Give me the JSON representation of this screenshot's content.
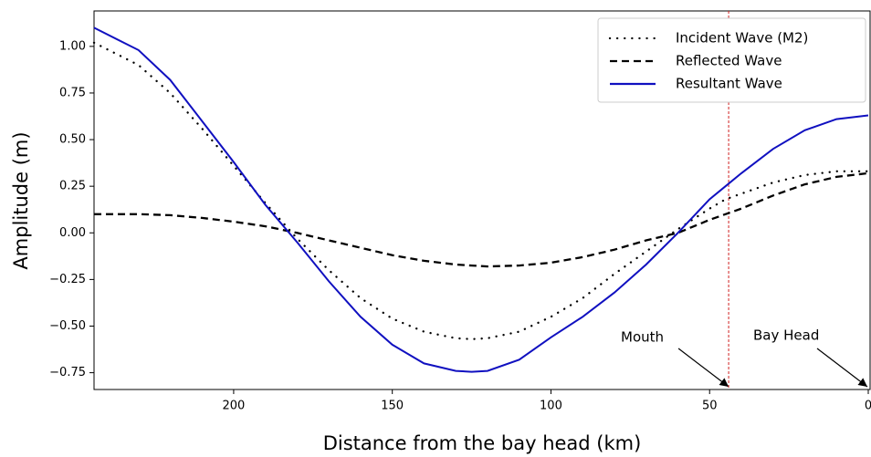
{
  "chart_data": {
    "type": "line",
    "xlabel": "Distance from the bay head (km)",
    "ylabel": "Amplitude (m)",
    "x": [
      244,
      230,
      220,
      210,
      200,
      190,
      180,
      170,
      160,
      150,
      140,
      130,
      125,
      120,
      110,
      100,
      90,
      80,
      70,
      60,
      50,
      45,
      40,
      30,
      20,
      10,
      0
    ],
    "series": [
      {
        "name": "Incident Wave (M2)",
        "color": "#000000",
        "style": "dotted",
        "values": [
          1.02,
          0.9,
          0.75,
          0.56,
          0.36,
          0.16,
          -0.03,
          -0.2,
          -0.35,
          -0.46,
          -0.53,
          -0.565,
          -0.57,
          -0.565,
          -0.53,
          -0.45,
          -0.35,
          -0.22,
          -0.1,
          0.02,
          0.13,
          0.18,
          0.21,
          0.27,
          0.31,
          0.33,
          0.33
        ]
      },
      {
        "name": "Reflected Wave",
        "color": "#000000",
        "style": "dashed",
        "values": [
          0.1,
          0.1,
          0.095,
          0.08,
          0.06,
          0.035,
          0.0,
          -0.04,
          -0.08,
          -0.12,
          -0.15,
          -0.17,
          -0.175,
          -0.18,
          -0.175,
          -0.16,
          -0.13,
          -0.09,
          -0.04,
          0.0,
          0.07,
          0.1,
          0.13,
          0.2,
          0.26,
          0.3,
          0.32
        ]
      },
      {
        "name": "Resultant Wave",
        "color": "#1010c0",
        "style": "solid",
        "values": [
          1.1,
          0.98,
          0.82,
          0.6,
          0.38,
          0.15,
          -0.05,
          -0.26,
          -0.45,
          -0.6,
          -0.7,
          -0.74,
          -0.745,
          -0.74,
          -0.68,
          -0.56,
          -0.45,
          -0.32,
          -0.17,
          0.0,
          0.18,
          0.25,
          0.32,
          0.45,
          0.55,
          0.61,
          0.63
        ]
      }
    ],
    "xlim": [
      244,
      0
    ],
    "ylim": [
      -0.84,
      1.19
    ],
    "xticks": [
      200,
      150,
      100,
      50,
      0
    ],
    "yticks": [
      {
        "value": 1,
        "label": "1.00"
      },
      0.75,
      {
        "value": 0.5,
        "label": "0.50"
      },
      0.25,
      {
        "value": 0,
        "label": "0.00"
      },
      {
        "value": -0.25,
        "label": "−0.25"
      },
      {
        "value": -0.5,
        "label": "−0.50"
      },
      {
        "value": -0.75,
        "label": "−0.75"
      }
    ],
    "mouth_line": {
      "x": 44,
      "color": "#d02020"
    },
    "annotations": [
      "Mouth",
      "Bay Head"
    ],
    "legend": "upper right"
  }
}
